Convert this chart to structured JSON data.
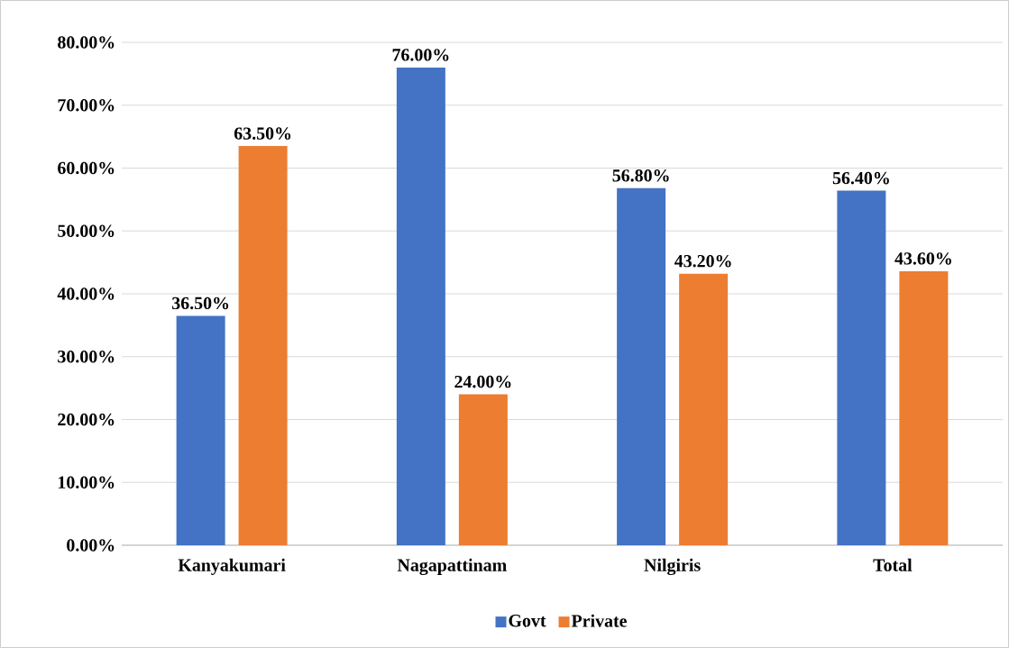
{
  "chart_data": {
    "type": "bar",
    "categories": [
      "Kanyakumari",
      "Nagapattinam",
      "Nilgiris",
      "Total"
    ],
    "series": [
      {
        "name": "Govt",
        "color": "#4472c4",
        "values": [
          36.5,
          76.0,
          56.8,
          56.4
        ],
        "value_labels": [
          "36.50%",
          "76.00%",
          "56.80%",
          "56.40%"
        ]
      },
      {
        "name": "Private",
        "color": "#ed7d31",
        "values": [
          63.5,
          24.0,
          43.2,
          43.6
        ],
        "value_labels": [
          "63.50%",
          "24.00%",
          "43.20%",
          "43.60%"
        ]
      }
    ],
    "ylim": [
      0,
      80
    ],
    "yticks": [
      {
        "value": 0,
        "label": "0.00%"
      },
      {
        "value": 10,
        "label": "10.00%"
      },
      {
        "value": 20,
        "label": "20.00%"
      },
      {
        "value": 30,
        "label": "30.00%"
      },
      {
        "value": 40,
        "label": "40.00%"
      },
      {
        "value": 50,
        "label": "50.00%"
      },
      {
        "value": 60,
        "label": "60.00%"
      },
      {
        "value": 70,
        "label": "70.00%"
      },
      {
        "value": 80,
        "label": "80.00%"
      }
    ],
    "grid": "y",
    "legend": "bottom"
  }
}
